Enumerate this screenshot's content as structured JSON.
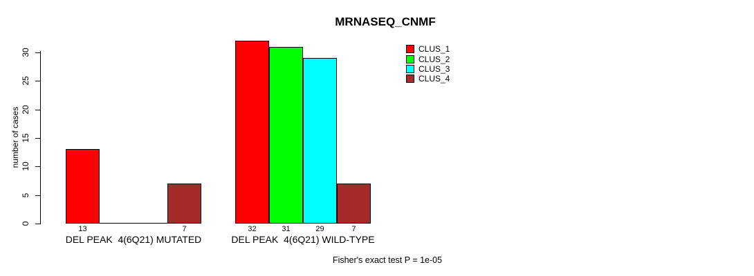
{
  "chart_data": {
    "type": "bar",
    "title": "MRNASEQ_CNMF",
    "ylabel": "number of cases",
    "yticks": [
      0,
      5,
      10,
      15,
      20,
      25,
      30
    ],
    "ylim": [
      0,
      30
    ],
    "grid": false,
    "categories": [
      "DEL PEAK  4(6Q21) MUTATED",
      "DEL PEAK  4(6Q21) WILD-TYPE"
    ],
    "series": [
      {
        "name": "CLUS_1",
        "color": "#ff0000",
        "values": [
          13,
          32
        ]
      },
      {
        "name": "CLUS_2",
        "color": "#00ff00",
        "values": [
          0,
          31
        ]
      },
      {
        "name": "CLUS_3",
        "color": "#00ffff",
        "values": [
          0,
          29
        ]
      },
      {
        "name": "CLUS_4",
        "color": "#a52a2a",
        "values": [
          7,
          7
        ]
      }
    ],
    "legend_position": "top-right-inside",
    "annotation": "Fisher's exact test P = 1e-05"
  }
}
